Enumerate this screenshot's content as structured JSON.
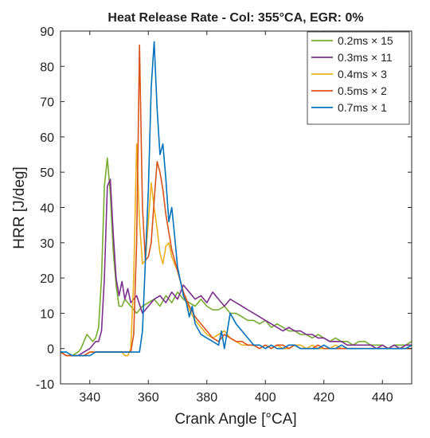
{
  "chart_data": {
    "type": "line",
    "title": "Heat Release Rate - Col: 355°CA, EGR: 0%",
    "xlabel": "Crank Angle [°CA]",
    "ylabel": "HRR [J/deg]",
    "xlim": [
      330,
      450
    ],
    "ylim": [
      -10,
      90
    ],
    "xticks": [
      340,
      360,
      380,
      400,
      420,
      440
    ],
    "yticks": [
      -10,
      0,
      10,
      20,
      30,
      40,
      50,
      60,
      70,
      80,
      90
    ],
    "grid": false,
    "legend_position": "top-right",
    "series": [
      {
        "name": "0.2ms × 15",
        "color": "#77AC30",
        "x": [
          330,
          332,
          334,
          336,
          337,
          338,
          339,
          340,
          341,
          342,
          343,
          344,
          345,
          346,
          347,
          348,
          349,
          350,
          351,
          352,
          353,
          354,
          355,
          356,
          358,
          360,
          362,
          364,
          366,
          368,
          370,
          372,
          374,
          376,
          378,
          380,
          382,
          384,
          386,
          388,
          390,
          392,
          394,
          396,
          398,
          400,
          402,
          404,
          406,
          408,
          410,
          412,
          414,
          416,
          418,
          420,
          422,
          424,
          426,
          428,
          430,
          432,
          434,
          436,
          438,
          440,
          442,
          444,
          446,
          448,
          450
        ],
        "y": [
          -1,
          -2,
          -2,
          -1,
          0,
          2,
          4,
          3,
          2,
          3,
          6,
          20,
          46,
          54,
          44,
          28,
          18,
          12,
          12,
          14,
          13,
          12,
          11,
          10,
          12,
          13,
          14,
          12,
          15,
          13,
          16,
          14,
          13,
          12,
          14,
          12,
          11,
          11,
          12,
          10,
          10,
          9,
          8,
          8,
          7,
          8,
          6,
          7,
          6,
          5,
          5,
          4,
          4,
          3,
          4,
          3,
          2,
          3,
          2,
          2,
          1,
          2,
          2,
          1,
          1,
          1,
          0,
          1,
          1,
          1,
          2
        ]
      },
      {
        "name": "0.3ms × 11",
        "color": "#7E2F8E",
        "x": [
          330,
          332,
          334,
          336,
          338,
          340,
          341,
          342,
          343,
          344,
          345,
          346,
          347,
          348,
          349,
          350,
          351,
          352,
          353,
          354,
          356,
          358,
          360,
          362,
          364,
          366,
          368,
          370,
          372,
          374,
          376,
          378,
          380,
          382,
          384,
          386,
          388,
          390,
          392,
          394,
          396,
          398,
          400,
          402,
          404,
          406,
          408,
          410,
          412,
          414,
          416,
          418,
          420,
          422,
          424,
          426,
          428,
          430,
          432,
          434,
          436,
          438,
          440,
          442,
          444,
          446,
          448,
          450
        ],
        "y": [
          -1,
          -2,
          -2,
          -2,
          -1,
          0,
          1,
          2,
          2,
          5,
          20,
          46,
          48,
          33,
          20,
          15,
          19,
          14,
          17,
          13,
          15,
          10,
          12,
          14,
          15,
          13,
          16,
          14,
          18,
          16,
          14,
          15,
          13,
          16,
          14,
          12,
          14,
          13,
          12,
          11,
          10,
          9,
          8,
          7,
          6,
          5,
          6,
          5,
          5,
          4,
          4,
          3,
          3,
          2,
          2,
          2,
          1,
          1,
          1,
          1,
          1,
          0,
          1,
          0,
          1,
          0,
          1,
          1
        ]
      },
      {
        "name": "0.4ms × 3",
        "color": "#EDB120",
        "x": [
          330,
          332,
          334,
          336,
          338,
          340,
          342,
          344,
          346,
          348,
          350,
          351,
          352,
          353,
          354,
          355,
          356,
          357,
          358,
          359,
          360,
          361,
          362,
          363,
          364,
          365,
          366,
          367,
          368,
          369,
          370,
          371,
          372,
          374,
          376,
          378,
          380,
          382,
          384,
          386,
          388,
          390,
          392,
          394,
          396,
          398,
          400,
          402,
          404,
          406,
          408,
          410,
          412,
          414,
          416,
          418,
          420,
          422,
          424,
          426,
          428,
          430,
          432,
          434,
          436,
          438,
          440,
          442,
          444,
          446,
          448,
          450
        ],
        "y": [
          -1,
          -2,
          -2,
          -2,
          -2,
          -1,
          -1,
          -1,
          -1,
          -1,
          -1,
          -1,
          -2,
          -2,
          0,
          20,
          58,
          36,
          24,
          25,
          36,
          47,
          40,
          34,
          27,
          24,
          29,
          30,
          26,
          24,
          22,
          19,
          16,
          11,
          8,
          6,
          4,
          3,
          4,
          5,
          3,
          2,
          1,
          1,
          1,
          0,
          1,
          0,
          1,
          0,
          0,
          1,
          1,
          0,
          1,
          0,
          0,
          0,
          1,
          0,
          0,
          0,
          0,
          0,
          0,
          0,
          0,
          0,
          0,
          0,
          0,
          0
        ]
      },
      {
        "name": "0.5ms × 2",
        "color": "#D95319",
        "x": [
          330,
          332,
          334,
          336,
          338,
          340,
          342,
          344,
          346,
          348,
          350,
          352,
          354,
          355,
          356,
          357,
          358,
          359,
          360,
          361,
          362,
          363,
          364,
          365,
          366,
          367,
          368,
          370,
          372,
          374,
          376,
          378,
          380,
          382,
          384,
          386,
          388,
          390,
          392,
          394,
          396,
          398,
          400,
          402,
          404,
          406,
          408,
          410,
          412,
          414,
          416,
          418,
          420,
          422,
          424,
          426,
          428,
          430,
          432,
          434,
          436,
          438,
          440,
          442,
          444,
          446,
          448,
          450
        ],
        "y": [
          -1,
          -2,
          -2,
          -2,
          -2,
          -1,
          -1,
          -1,
          -1,
          -1,
          -1,
          -1,
          -1,
          4,
          30,
          86,
          40,
          25,
          26,
          30,
          42,
          53,
          50,
          45,
          38,
          33,
          28,
          22,
          16,
          12,
          9,
          7,
          5,
          3,
          2,
          4,
          3,
          2,
          2,
          1,
          1,
          0,
          1,
          0,
          1,
          1,
          0,
          1,
          0,
          0,
          0,
          1,
          0,
          0,
          0,
          0,
          0,
          0,
          0,
          0,
          0,
          0,
          0,
          0,
          0,
          0,
          0,
          0
        ]
      },
      {
        "name": "0.7ms × 1",
        "color": "#0072BD",
        "x": [
          330,
          332,
          334,
          336,
          338,
          340,
          342,
          344,
          346,
          348,
          350,
          352,
          354,
          356,
          357,
          358,
          359,
          360,
          361,
          362,
          363,
          364,
          365,
          366,
          367,
          368,
          369,
          370,
          371,
          372,
          373,
          374,
          375,
          376,
          378,
          380,
          382,
          384,
          385,
          386,
          388,
          390,
          392,
          394,
          396,
          398,
          400,
          402,
          404,
          406,
          408,
          410,
          412,
          414,
          416,
          418,
          420,
          422,
          424,
          426,
          428,
          430,
          432,
          434,
          436,
          438,
          440,
          442,
          444,
          446,
          448,
          450
        ],
        "y": [
          -1,
          -1,
          -2,
          -2,
          -2,
          -2,
          -1,
          -1,
          -1,
          -1,
          -1,
          -1,
          -1,
          -1,
          -1,
          5,
          25,
          45,
          74,
          87,
          68,
          55,
          58,
          48,
          36,
          40,
          32,
          23,
          19,
          15,
          13,
          9,
          12,
          7,
          4,
          3,
          2,
          1,
          5,
          0,
          10,
          7,
          5,
          3,
          1,
          1,
          0,
          1,
          0,
          0,
          1,
          1,
          0,
          0,
          0,
          0,
          1,
          0,
          0,
          1,
          0,
          0,
          0,
          0,
          0,
          0,
          0,
          0,
          0,
          0,
          0,
          1
        ]
      }
    ]
  }
}
